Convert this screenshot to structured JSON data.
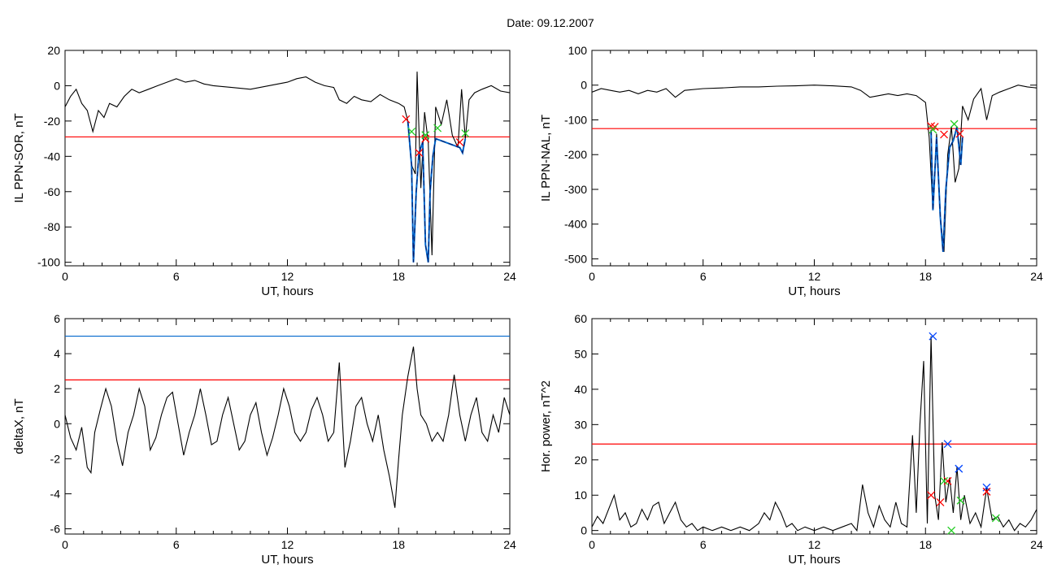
{
  "title": "Date:  09.12.2007",
  "colors": {
    "data": "#000000",
    "threshold": "#ff0000",
    "upper": "#0066cc",
    "highlight": "#0066cc",
    "marker_red": "#ff0000",
    "marker_green": "#22cc22",
    "marker_blue": "#0044ff"
  },
  "chart_data": [
    {
      "type": "line",
      "xlabel": "UT, hours",
      "ylabel": "IL PPN-SOR, nT",
      "xlim": [
        0,
        24
      ],
      "ylim": [
        -102,
        20
      ],
      "xticks": [
        0,
        6,
        12,
        18,
        24
      ],
      "yticks": [
        20,
        0,
        -20,
        -40,
        -60,
        -80,
        -100
      ],
      "thresholds": [
        {
          "y": -29,
          "color": "red"
        }
      ],
      "series": [
        {
          "x": [
            0,
            0.3,
            0.6,
            0.9,
            1.2,
            1.5,
            1.8,
            2.1,
            2.4,
            2.8,
            3.2,
            3.6,
            4.0,
            4.5,
            5,
            5.5,
            6,
            6.5,
            7,
            7.5,
            8,
            9,
            10,
            11,
            12,
            12.5,
            13,
            13.5,
            14,
            14.5,
            14.8,
            15.2,
            15.6,
            16,
            16.5,
            17,
            17.5,
            18,
            18.3,
            18.5,
            18.7,
            18.9,
            19.0,
            19.2,
            19.4,
            19.6,
            19.8,
            20.0,
            20.3,
            20.6,
            20.9,
            21.2,
            21.4,
            21.6,
            21.8,
            22.1,
            22.5,
            23,
            23.5,
            24
          ],
          "y": [
            -12,
            -6,
            -2,
            -10,
            -14,
            -26,
            -14,
            -18,
            -10,
            -12,
            -6,
            -2,
            -4,
            -2,
            0,
            2,
            4,
            2,
            3,
            1,
            0,
            -1,
            -2,
            0,
            2,
            4,
            5,
            2,
            0,
            -1,
            -8,
            -10,
            -6,
            -8,
            -9,
            -5,
            -8,
            -10,
            -12,
            -20,
            -45,
            -50,
            8,
            -58,
            -15,
            -32,
            -96,
            -12,
            -22,
            -8,
            -28,
            -35,
            -2,
            -30,
            -8,
            -4,
            -2,
            0,
            -3,
            -4
          ]
        }
      ],
      "highlight": {
        "x": [
          18.5,
          18.7,
          18.8,
          18.95,
          19.1,
          19.3,
          19.45,
          19.6,
          19.7,
          19.85,
          20.0,
          21.3,
          21.45,
          21.6
        ],
        "y": [
          -20,
          -45,
          -100,
          -60,
          -38,
          -32,
          -90,
          -100,
          -60,
          -40,
          -30,
          -35,
          -38,
          -30
        ]
      },
      "markers": [
        {
          "x": 18.4,
          "y": -19,
          "color": "red"
        },
        {
          "x": 18.7,
          "y": -26,
          "color": "green"
        },
        {
          "x": 19.1,
          "y": -38,
          "color": "red"
        },
        {
          "x": 19.45,
          "y": -30,
          "color": "red"
        },
        {
          "x": 19.45,
          "y": -28,
          "color": "green"
        },
        {
          "x": 20.1,
          "y": -24,
          "color": "green"
        },
        {
          "x": 21.3,
          "y": -32,
          "color": "red"
        },
        {
          "x": 21.6,
          "y": -27,
          "color": "green"
        }
      ]
    },
    {
      "type": "line",
      "xlabel": "UT, hours",
      "ylabel": "IL PPN-NAL, nT",
      "xlim": [
        0,
        24
      ],
      "ylim": [
        -520,
        100
      ],
      "xticks": [
        0,
        6,
        12,
        18,
        24
      ],
      "yticks": [
        100,
        0,
        -100,
        -200,
        -300,
        -400,
        -500
      ],
      "thresholds": [
        {
          "y": -125,
          "color": "red"
        }
      ],
      "series": [
        {
          "x": [
            0,
            0.5,
            1,
            1.5,
            2,
            2.5,
            3,
            3.5,
            4,
            4.5,
            5,
            6,
            7,
            8,
            9,
            10,
            11,
            12,
            13,
            14,
            14.5,
            15,
            15.5,
            16,
            16.5,
            17,
            17.5,
            18,
            18.2,
            18.4,
            18.6,
            18.8,
            19.0,
            19.2,
            19.4,
            19.6,
            19.8,
            20.0,
            20.3,
            20.6,
            21,
            21.3,
            21.6,
            22,
            22.5,
            23,
            23.5,
            24
          ],
          "y": [
            -20,
            -10,
            -15,
            -20,
            -15,
            -25,
            -15,
            -20,
            -10,
            -35,
            -15,
            -10,
            -8,
            -5,
            -5,
            -3,
            -2,
            0,
            -2,
            -5,
            -15,
            -35,
            -30,
            -25,
            -30,
            -25,
            -30,
            -50,
            -150,
            -360,
            -140,
            -380,
            -480,
            -200,
            -120,
            -280,
            -240,
            -60,
            -100,
            -40,
            -10,
            -100,
            -30,
            -20,
            -10,
            0,
            -5,
            -8
          ]
        }
      ],
      "highlight": {
        "x": [
          18.3,
          18.4,
          18.6,
          18.8,
          18.95,
          19.1,
          19.3,
          19.5,
          19.7,
          19.9,
          20.0
        ],
        "y": [
          -130,
          -360,
          -150,
          -380,
          -480,
          -300,
          -180,
          -160,
          -120,
          -230,
          -150
        ]
      },
      "markers": [
        {
          "x": 18.3,
          "y": -118,
          "color": "red"
        },
        {
          "x": 18.5,
          "y": -120,
          "color": "red"
        },
        {
          "x": 18.4,
          "y": -128,
          "color": "green"
        },
        {
          "x": 19.0,
          "y": -142,
          "color": "red"
        },
        {
          "x": 19.55,
          "y": -112,
          "color": "green"
        },
        {
          "x": 19.85,
          "y": -140,
          "color": "red"
        }
      ]
    },
    {
      "type": "line",
      "xlabel": "UT, hours",
      "ylabel": "deltaX, nT",
      "xlim": [
        0,
        24
      ],
      "ylim": [
        -6.3,
        6
      ],
      "xticks": [
        0,
        6,
        12,
        18,
        24
      ],
      "yticks": [
        6,
        4,
        2,
        0,
        -2,
        -4,
        -6
      ],
      "thresholds": [
        {
          "y": 2.5,
          "color": "red"
        },
        {
          "y": 5.0,
          "color": "blue"
        }
      ],
      "series": [
        {
          "x": [
            0,
            0.3,
            0.6,
            0.9,
            1.2,
            1.4,
            1.6,
            1.9,
            2.2,
            2.5,
            2.8,
            3.1,
            3.4,
            3.7,
            4.0,
            4.3,
            4.6,
            4.9,
            5.2,
            5.5,
            5.8,
            6.1,
            6.4,
            6.7,
            7.0,
            7.3,
            7.6,
            7.9,
            8.2,
            8.5,
            8.8,
            9.1,
            9.4,
            9.7,
            10.0,
            10.3,
            10.6,
            10.9,
            11.2,
            11.5,
            11.8,
            12.1,
            12.4,
            12.7,
            13.0,
            13.3,
            13.6,
            13.9,
            14.2,
            14.5,
            14.8,
            15.1,
            15.4,
            15.7,
            16.0,
            16.3,
            16.6,
            16.9,
            17.2,
            17.5,
            17.8,
            18.0,
            18.2,
            18.5,
            18.8,
            19.0,
            19.2,
            19.5,
            19.8,
            20.1,
            20.4,
            20.7,
            21.0,
            21.3,
            21.6,
            21.9,
            22.2,
            22.5,
            22.8,
            23.1,
            23.4,
            23.7,
            24
          ],
          "y": [
            0.5,
            -0.8,
            -1.5,
            -0.2,
            -2.5,
            -2.8,
            -0.5,
            0.8,
            2.0,
            1.0,
            -1.0,
            -2.4,
            -0.5,
            0.5,
            2.0,
            1.0,
            -1.5,
            -0.8,
            0.5,
            1.5,
            1.8,
            0.0,
            -1.8,
            -0.5,
            0.5,
            2.0,
            0.5,
            -1.2,
            -1.0,
            0.5,
            1.5,
            0.0,
            -1.5,
            -1.0,
            0.5,
            1.2,
            -0.5,
            -1.8,
            -0.8,
            0.5,
            2.0,
            1.0,
            -0.5,
            -1.0,
            -0.5,
            0.8,
            1.5,
            0.5,
            -1.0,
            -0.5,
            3.5,
            -2.5,
            -1.0,
            1.0,
            1.5,
            0.0,
            -1.0,
            0.5,
            -1.5,
            -3.0,
            -4.8,
            -2.0,
            0.5,
            2.7,
            4.4,
            2.0,
            0.5,
            0.0,
            -1.0,
            -0.5,
            -1.0,
            0.5,
            2.8,
            0.5,
            -1.0,
            0.5,
            1.5,
            -0.5,
            -1.0,
            0.5,
            -0.5,
            1.5,
            0.5
          ]
        }
      ]
    },
    {
      "type": "line",
      "xlabel": "UT, hours",
      "ylabel": "Hor. power, nT^2",
      "xlim": [
        0,
        24
      ],
      "ylim": [
        -1,
        60
      ],
      "xticks": [
        0,
        6,
        12,
        18,
        24
      ],
      "yticks": [
        60,
        50,
        40,
        30,
        20,
        10,
        0
      ],
      "thresholds": [
        {
          "y": 24.5,
          "color": "red"
        }
      ],
      "series": [
        {
          "x": [
            0,
            0.3,
            0.6,
            0.9,
            1.2,
            1.5,
            1.8,
            2.1,
            2.4,
            2.7,
            3.0,
            3.3,
            3.6,
            3.9,
            4.2,
            4.5,
            4.8,
            5.1,
            5.4,
            5.7,
            6.0,
            6.5,
            7.0,
            7.5,
            8.0,
            8.5,
            9.0,
            9.3,
            9.6,
            9.9,
            10.2,
            10.5,
            10.8,
            11.1,
            11.5,
            12,
            12.5,
            13,
            13.5,
            14,
            14.3,
            14.6,
            14.9,
            15.2,
            15.5,
            15.8,
            16.1,
            16.4,
            16.7,
            17.0,
            17.3,
            17.5,
            17.7,
            17.9,
            18.1,
            18.3,
            18.5,
            18.7,
            18.9,
            19.1,
            19.3,
            19.5,
            19.7,
            19.9,
            20.1,
            20.4,
            20.7,
            21.0,
            21.3,
            21.6,
            21.9,
            22.2,
            22.5,
            22.8,
            23.1,
            23.4,
            23.7,
            24
          ],
          "y": [
            1,
            4,
            2,
            6,
            10,
            3,
            5,
            1,
            2,
            6,
            3,
            7,
            8,
            2,
            5,
            8,
            3,
            1,
            2,
            0,
            1,
            0,
            1,
            0,
            1,
            0,
            2,
            5,
            3,
            8,
            5,
            1,
            2,
            0,
            1,
            0,
            1,
            0,
            1,
            2,
            0,
            13,
            5,
            1,
            7,
            3,
            1,
            8,
            2,
            1,
            27,
            5,
            30,
            48,
            2,
            55,
            10,
            3,
            25,
            8,
            15,
            5,
            18,
            3,
            10,
            2,
            5,
            1,
            12,
            3,
            4,
            1,
            3,
            0,
            2,
            1,
            3,
            6
          ]
        }
      ],
      "markers": [
        {
          "x": 18.4,
          "y": 55,
          "color": "blue"
        },
        {
          "x": 19.2,
          "y": 24.5,
          "color": "blue"
        },
        {
          "x": 19.8,
          "y": 17.5,
          "color": "blue"
        },
        {
          "x": 21.3,
          "y": 12.2,
          "color": "blue"
        },
        {
          "x": 18.3,
          "y": 10,
          "color": "red"
        },
        {
          "x": 18.8,
          "y": 8,
          "color": "red"
        },
        {
          "x": 19.2,
          "y": 14,
          "color": "red"
        },
        {
          "x": 21.3,
          "y": 11,
          "color": "red"
        },
        {
          "x": 19.0,
          "y": 14,
          "color": "green"
        },
        {
          "x": 19.9,
          "y": 8.5,
          "color": "green"
        },
        {
          "x": 21.8,
          "y": 3.5,
          "color": "green"
        },
        {
          "x": 19.4,
          "y": 0,
          "color": "green"
        }
      ]
    }
  ]
}
